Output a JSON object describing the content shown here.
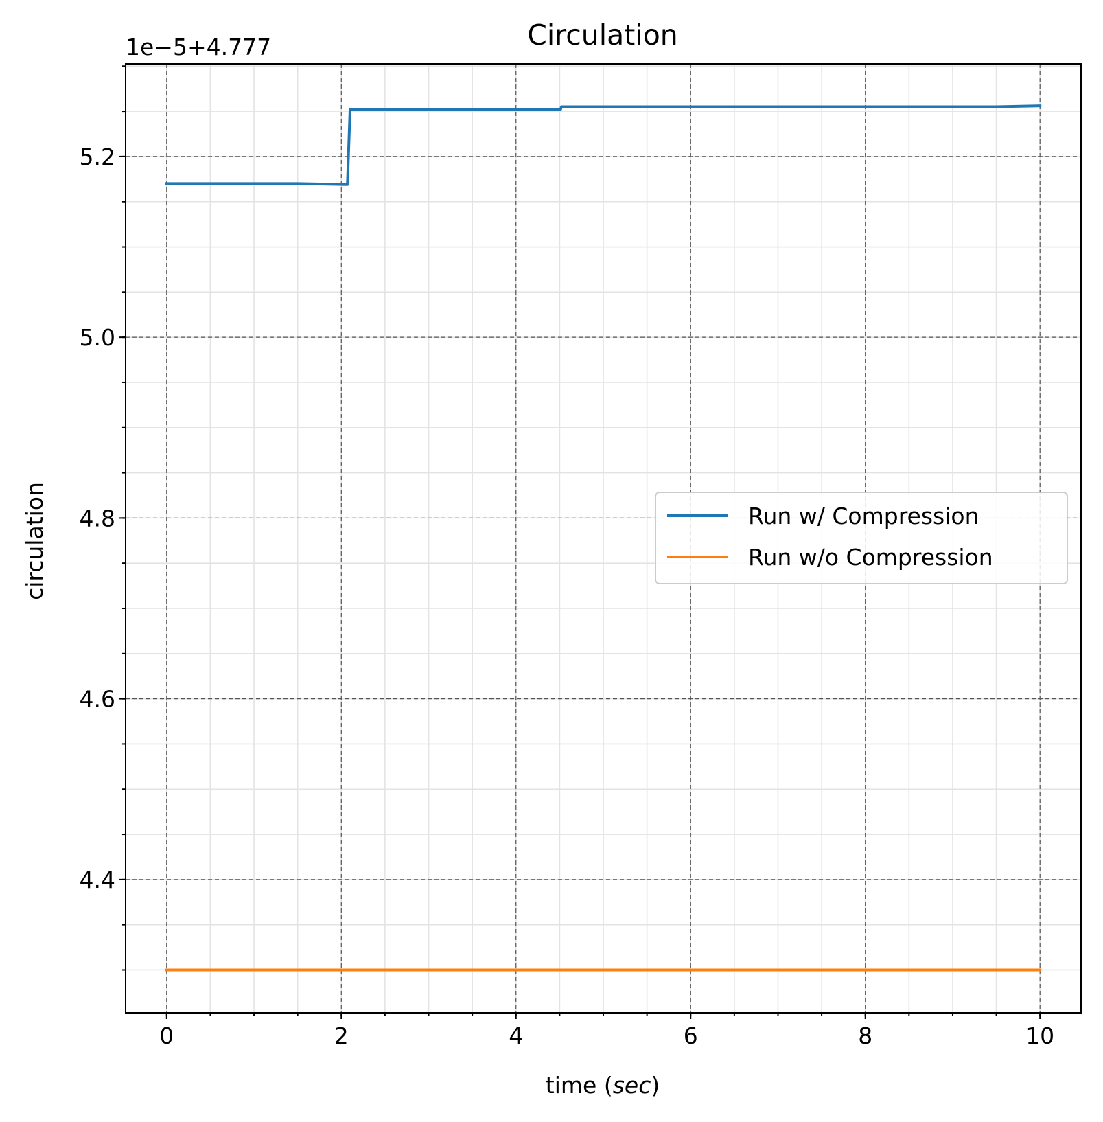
{
  "chart_data": {
    "type": "line",
    "title": "Circulation",
    "xlabel_prefix": "time (",
    "xlabel_italic": "sec",
    "xlabel_suffix": ")",
    "ylabel": "circulation",
    "y_offset_label": "1e−5+4.777",
    "xlim": [
      -0.47,
      10.47
    ],
    "ylim": [
      4.2525,
      5.3025
    ],
    "x_ticks": [
      0,
      2,
      4,
      6,
      8,
      10
    ],
    "x_tick_labels": [
      "0",
      "2",
      "4",
      "6",
      "8",
      "10"
    ],
    "y_ticks": [
      4.4,
      4.6,
      4.8,
      5.0,
      5.2
    ],
    "y_tick_labels": [
      "4.4",
      "4.6",
      "4.8",
      "5.0",
      "5.2"
    ],
    "x_minor_step": 0.5,
    "y_minor_step": 0.05,
    "grid": true,
    "legend_position": "center-right",
    "series": [
      {
        "name": "Run w/ Compression",
        "color": "#1f77b4",
        "x": [
          0,
          0.5,
          1.0,
          1.5,
          2.06,
          2.07,
          2.1,
          2.5,
          3.0,
          3.5,
          4.0,
          4.5,
          4.51,
          4.52,
          5.0,
          5.5,
          6.0,
          6.5,
          7.0,
          7.5,
          8.0,
          8.5,
          9.0,
          9.5,
          10.0
        ],
        "y": [
          5.17,
          5.17,
          5.17,
          5.17,
          5.169,
          5.169,
          5.252,
          5.252,
          5.252,
          5.252,
          5.252,
          5.252,
          5.252,
          5.255,
          5.255,
          5.255,
          5.255,
          5.255,
          5.255,
          5.255,
          5.255,
          5.255,
          5.255,
          5.255,
          5.256
        ]
      },
      {
        "name": "Run w/o Compression",
        "color": "#ff7f0e",
        "x": [
          0,
          10
        ],
        "y": [
          4.3,
          4.3
        ]
      }
    ]
  }
}
